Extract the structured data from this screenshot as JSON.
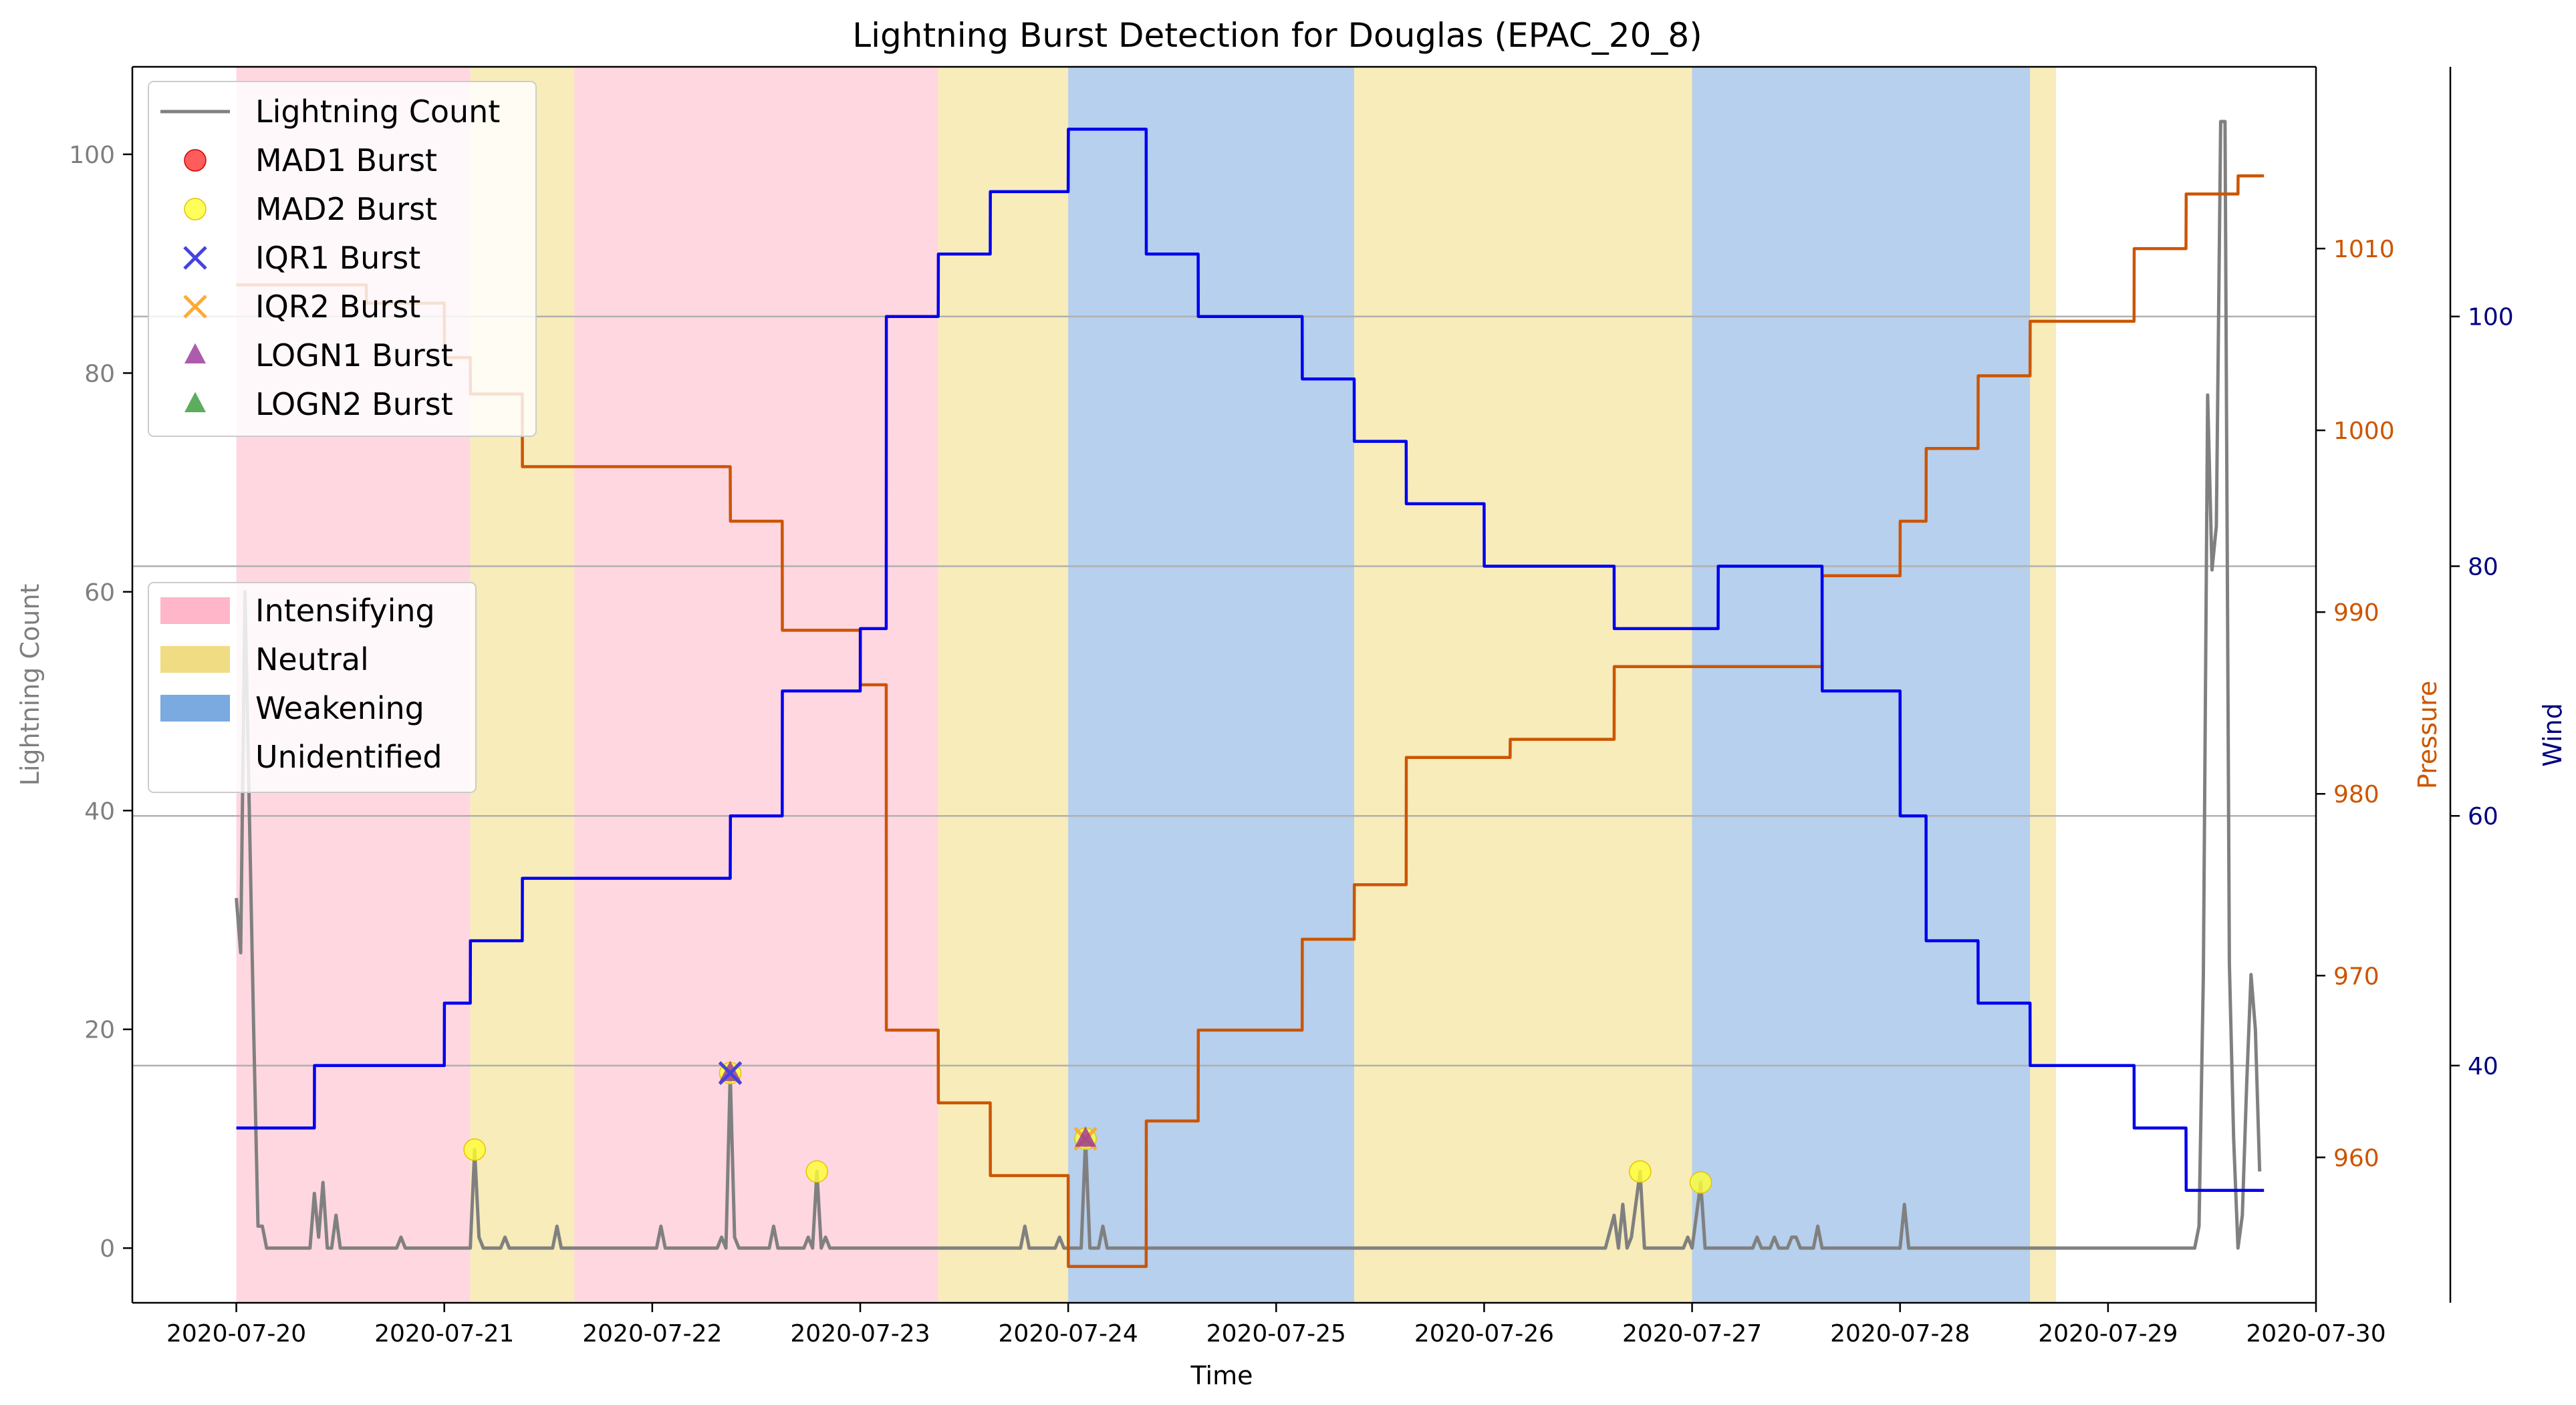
{
  "chart_data": {
    "type": "line",
    "title": "Lightning Burst Detection for Douglas (EPAC_20_8)",
    "xlabel": "Time",
    "ylabel_left": "Lightning Count",
    "ylabel_pressure": "Pressure",
    "ylabel_wind": "Wind",
    "x_range": [
      "2020-07-19T12:00",
      "2020-07-30T00:00"
    ],
    "y_left_range": [
      -5,
      108
    ],
    "y_pressure_range": [
      952,
      1020
    ],
    "y_wind_range": [
      21,
      120
    ],
    "x_ticks": [
      "2020-07-20",
      "2020-07-21",
      "2020-07-22",
      "2020-07-23",
      "2020-07-24",
      "2020-07-25",
      "2020-07-26",
      "2020-07-27",
      "2020-07-28",
      "2020-07-29",
      "2020-07-30"
    ],
    "y_left_ticks": [
      0,
      20,
      40,
      60,
      80,
      100
    ],
    "y_pressure_ticks": [
      960,
      970,
      980,
      990,
      1000,
      1010
    ],
    "y_wind_ticks": [
      40,
      60,
      80,
      100
    ],
    "grid": "horizontal at wind ticks",
    "colors": {
      "lightning": "#808080",
      "pressure": "#cc5500",
      "wind": "#0000ee",
      "pressure_axis": "#cc5500",
      "wind_axis": "#000080",
      "intensifying": "#ffb6c8",
      "neutral": "#f0dc82",
      "weakening": "#7aaadf",
      "mad1": "#ff3333",
      "mad2": "#ffff33",
      "iqr1": "#4444dd",
      "iqr2": "#ffaa33",
      "logn1": "#993399",
      "logn2": "#339933"
    },
    "stage_spans": [
      {
        "stage": "Intensifying",
        "start": "2020-07-20T00:00",
        "end": "2020-07-21T03:00"
      },
      {
        "stage": "Neutral",
        "start": "2020-07-21T03:00",
        "end": "2020-07-21T15:00"
      },
      {
        "stage": "Intensifying",
        "start": "2020-07-21T15:00",
        "end": "2020-07-23T09:00"
      },
      {
        "stage": "Neutral",
        "start": "2020-07-23T09:00",
        "end": "2020-07-24T00:00"
      },
      {
        "stage": "Weakening",
        "start": "2020-07-24T00:00",
        "end": "2020-07-25T09:00"
      },
      {
        "stage": "Neutral",
        "start": "2020-07-25T09:00",
        "end": "2020-07-27T00:00"
      },
      {
        "stage": "Weakening",
        "start": "2020-07-27T00:00",
        "end": "2020-07-28T15:00"
      },
      {
        "stage": "Neutral",
        "start": "2020-07-28T15:00",
        "end": "2020-07-28T18:00"
      }
    ],
    "wind_series": [
      [
        "2020-07-20T00:00",
        35
      ],
      [
        "2020-07-20T09:00",
        35
      ],
      [
        "2020-07-20T09:01",
        40
      ],
      [
        "2020-07-21T00:00",
        40
      ],
      [
        "2020-07-21T00:01",
        45
      ],
      [
        "2020-07-21T03:00",
        45
      ],
      [
        "2020-07-21T03:01",
        50
      ],
      [
        "2020-07-21T09:00",
        50
      ],
      [
        "2020-07-21T09:01",
        55
      ],
      [
        "2020-07-22T09:00",
        55
      ],
      [
        "2020-07-22T09:01",
        60
      ],
      [
        "2020-07-22T15:00",
        60
      ],
      [
        "2020-07-22T15:01",
        70
      ],
      [
        "2020-07-23T00:00",
        70
      ],
      [
        "2020-07-23T00:01",
        75
      ],
      [
        "2020-07-23T03:00",
        75
      ],
      [
        "2020-07-23T03:01",
        100
      ],
      [
        "2020-07-23T09:00",
        100
      ],
      [
        "2020-07-23T09:01",
        105
      ],
      [
        "2020-07-23T15:00",
        105
      ],
      [
        "2020-07-23T15:01",
        110
      ],
      [
        "2020-07-24T00:00",
        110
      ],
      [
        "2020-07-24T00:01",
        115
      ],
      [
        "2020-07-24T09:00",
        115
      ],
      [
        "2020-07-24T09:01",
        105
      ],
      [
        "2020-07-24T15:00",
        105
      ],
      [
        "2020-07-24T15:01",
        100
      ],
      [
        "2020-07-25T03:00",
        100
      ],
      [
        "2020-07-25T03:01",
        95
      ],
      [
        "2020-07-25T09:00",
        95
      ],
      [
        "2020-07-25T09:01",
        90
      ],
      [
        "2020-07-25T15:00",
        90
      ],
      [
        "2020-07-25T15:01",
        85
      ],
      [
        "2020-07-26T00:00",
        85
      ],
      [
        "2020-07-26T00:01",
        80
      ],
      [
        "2020-07-26T15:00",
        80
      ],
      [
        "2020-07-26T15:01",
        75
      ],
      [
        "2020-07-27T03:00",
        75
      ],
      [
        "2020-07-27T03:01",
        80
      ],
      [
        "2020-07-27T15:00",
        80
      ],
      [
        "2020-07-27T15:01",
        70
      ],
      [
        "2020-07-28T00:00",
        70
      ],
      [
        "2020-07-28T00:01",
        60
      ],
      [
        "2020-07-28T03:00",
        60
      ],
      [
        "2020-07-28T03:01",
        50
      ],
      [
        "2020-07-28T09:00",
        50
      ],
      [
        "2020-07-28T09:01",
        45
      ],
      [
        "2020-07-28T15:00",
        45
      ],
      [
        "2020-07-28T15:01",
        40
      ],
      [
        "2020-07-29T03:00",
        40
      ],
      [
        "2020-07-29T03:01",
        35
      ],
      [
        "2020-07-29T09:00",
        35
      ],
      [
        "2020-07-29T09:01",
        30
      ],
      [
        "2020-07-29T18:00",
        30
      ]
    ],
    "pressure_series": [
      [
        "2020-07-20T00:00",
        1008
      ],
      [
        "2020-07-20T15:00",
        1008
      ],
      [
        "2020-07-20T15:01",
        1007
      ],
      [
        "2020-07-21T00:00",
        1007
      ],
      [
        "2020-07-21T00:01",
        1004
      ],
      [
        "2020-07-21T03:00",
        1004
      ],
      [
        "2020-07-21T03:01",
        1002
      ],
      [
        "2020-07-21T09:00",
        1002
      ],
      [
        "2020-07-21T09:01",
        998
      ],
      [
        "2020-07-22T09:00",
        998
      ],
      [
        "2020-07-22T09:01",
        995
      ],
      [
        "2020-07-22T15:00",
        995
      ],
      [
        "2020-07-22T15:01",
        989
      ],
      [
        "2020-07-23T00:00",
        989
      ],
      [
        "2020-07-23T00:01",
        986
      ],
      [
        "2020-07-23T03:00",
        986
      ],
      [
        "2020-07-23T03:01",
        967
      ],
      [
        "2020-07-23T09:00",
        967
      ],
      [
        "2020-07-23T09:01",
        963
      ],
      [
        "2020-07-23T15:00",
        963
      ],
      [
        "2020-07-23T15:01",
        959
      ],
      [
        "2020-07-24T00:00",
        959
      ],
      [
        "2020-07-24T00:01",
        954
      ],
      [
        "2020-07-24T09:00",
        954
      ],
      [
        "2020-07-24T09:01",
        962
      ],
      [
        "2020-07-24T15:00",
        962
      ],
      [
        "2020-07-24T15:01",
        967
      ],
      [
        "2020-07-25T03:00",
        967
      ],
      [
        "2020-07-25T03:01",
        972
      ],
      [
        "2020-07-25T09:00",
        972
      ],
      [
        "2020-07-25T09:01",
        975
      ],
      [
        "2020-07-25T15:00",
        975
      ],
      [
        "2020-07-25T15:01",
        982
      ],
      [
        "2020-07-26T03:00",
        982
      ],
      [
        "2020-07-26T03:01",
        983
      ],
      [
        "2020-07-26T15:00",
        983
      ],
      [
        "2020-07-26T15:01",
        987
      ],
      [
        "2020-07-26T18:00",
        987
      ],
      [
        "2020-07-26T18:01",
        987
      ],
      [
        "2020-07-27T15:00",
        987
      ],
      [
        "2020-07-27T15:01",
        992
      ],
      [
        "2020-07-28T00:00",
        992
      ],
      [
        "2020-07-28T00:01",
        995
      ],
      [
        "2020-07-28T03:00",
        995
      ],
      [
        "2020-07-28T03:01",
        999
      ],
      [
        "2020-07-28T09:00",
        999
      ],
      [
        "2020-07-28T09:01",
        1003
      ],
      [
        "2020-07-28T15:00",
        1003
      ],
      [
        "2020-07-28T15:01",
        1006
      ],
      [
        "2020-07-29T03:00",
        1006
      ],
      [
        "2020-07-29T03:01",
        1010
      ],
      [
        "2020-07-29T09:00",
        1010
      ],
      [
        "2020-07-29T09:01",
        1013
      ],
      [
        "2020-07-29T15:00",
        1013
      ],
      [
        "2020-07-29T15:01",
        1014
      ],
      [
        "2020-07-29T18:00",
        1014
      ]
    ],
    "lightning_series": [
      [
        "2020-07-20T00:00",
        32
      ],
      [
        "2020-07-20T00:30",
        27
      ],
      [
        "2020-07-20T01:00",
        60
      ],
      [
        "2020-07-20T01:30",
        40
      ],
      [
        "2020-07-20T02:00",
        20
      ],
      [
        "2020-07-20T02:30",
        2
      ],
      [
        "2020-07-20T03:00",
        2
      ],
      [
        "2020-07-20T03:30",
        0
      ],
      [
        "2020-07-20T08:30",
        0
      ],
      [
        "2020-07-20T09:00",
        5
      ],
      [
        "2020-07-20T09:30",
        1
      ],
      [
        "2020-07-20T10:00",
        6
      ],
      [
        "2020-07-20T10:30",
        0
      ],
      [
        "2020-07-20T11:00",
        0
      ],
      [
        "2020-07-20T11:30",
        3
      ],
      [
        "2020-07-20T12:00",
        0
      ],
      [
        "2020-07-20T18:30",
        0
      ],
      [
        "2020-07-20T19:00",
        1
      ],
      [
        "2020-07-20T19:30",
        0
      ],
      [
        "2020-07-21T03:00",
        0
      ],
      [
        "2020-07-21T03:30",
        9
      ],
      [
        "2020-07-21T04:00",
        1
      ],
      [
        "2020-07-21T04:30",
        0
      ],
      [
        "2020-07-21T06:30",
        0
      ],
      [
        "2020-07-21T07:00",
        1
      ],
      [
        "2020-07-21T07:30",
        0
      ],
      [
        "2020-07-21T12:30",
        0
      ],
      [
        "2020-07-21T13:00",
        2
      ],
      [
        "2020-07-21T13:30",
        0
      ],
      [
        "2020-07-22T00:30",
        0
      ],
      [
        "2020-07-22T01:00",
        2
      ],
      [
        "2020-07-22T01:30",
        0
      ],
      [
        "2020-07-22T07:30",
        0
      ],
      [
        "2020-07-22T08:00",
        1
      ],
      [
        "2020-07-22T08:30",
        0
      ],
      [
        "2020-07-22T09:00",
        16
      ],
      [
        "2020-07-22T09:30",
        1
      ],
      [
        "2020-07-22T10:00",
        0
      ],
      [
        "2020-07-22T13:30",
        0
      ],
      [
        "2020-07-22T14:00",
        2
      ],
      [
        "2020-07-22T14:30",
        0
      ],
      [
        "2020-07-22T17:30",
        0
      ],
      [
        "2020-07-22T18:00",
        1
      ],
      [
        "2020-07-22T18:30",
        0
      ],
      [
        "2020-07-22T19:00",
        7
      ],
      [
        "2020-07-22T19:30",
        0
      ],
      [
        "2020-07-22T20:00",
        1
      ],
      [
        "2020-07-22T20:30",
        0
      ],
      [
        "2020-07-23T18:30",
        0
      ],
      [
        "2020-07-23T19:00",
        2
      ],
      [
        "2020-07-23T19:30",
        0
      ],
      [
        "2020-07-23T22:30",
        0
      ],
      [
        "2020-07-23T23:00",
        1
      ],
      [
        "2020-07-23T23:30",
        0
      ],
      [
        "2020-07-24T01:30",
        0
      ],
      [
        "2020-07-24T02:00",
        10
      ],
      [
        "2020-07-24T02:30",
        0
      ],
      [
        "2020-07-24T03:30",
        0
      ],
      [
        "2020-07-24T04:00",
        2
      ],
      [
        "2020-07-24T04:30",
        0
      ],
      [
        "2020-07-26T14:00",
        0
      ],
      [
        "2020-07-26T15:00",
        3
      ],
      [
        "2020-07-26T15:30",
        0
      ],
      [
        "2020-07-26T16:00",
        4
      ],
      [
        "2020-07-26T16:30",
        0
      ],
      [
        "2020-07-26T17:00",
        1
      ],
      [
        "2020-07-26T18:00",
        7
      ],
      [
        "2020-07-26T18:30",
        0
      ],
      [
        "2020-07-26T23:00",
        0
      ],
      [
        "2020-07-26T23:30",
        1
      ],
      [
        "2020-07-27T00:00",
        0
      ],
      [
        "2020-07-27T01:00",
        6
      ],
      [
        "2020-07-27T01:30",
        0
      ],
      [
        "2020-07-27T07:00",
        0
      ],
      [
        "2020-07-27T07:30",
        1
      ],
      [
        "2020-07-27T08:00",
        0
      ],
      [
        "2020-07-27T09:00",
        0
      ],
      [
        "2020-07-27T09:30",
        1
      ],
      [
        "2020-07-27T10:00",
        0
      ],
      [
        "2020-07-27T11:00",
        0
      ],
      [
        "2020-07-27T11:30",
        1
      ],
      [
        "2020-07-27T12:00",
        1
      ],
      [
        "2020-07-27T12:30",
        0
      ],
      [
        "2020-07-27T14:00",
        0
      ],
      [
        "2020-07-27T14:30",
        2
      ],
      [
        "2020-07-27T15:00",
        0
      ],
      [
        "2020-07-28T00:00",
        0
      ],
      [
        "2020-07-28T00:30",
        4
      ],
      [
        "2020-07-28T01:00",
        0
      ],
      [
        "2020-07-29T10:00",
        0
      ],
      [
        "2020-07-29T10:30",
        2
      ],
      [
        "2020-07-29T11:00",
        25
      ],
      [
        "2020-07-29T11:30",
        78
      ],
      [
        "2020-07-29T12:00",
        62
      ],
      [
        "2020-07-29T12:30",
        66
      ],
      [
        "2020-07-29T13:00",
        103
      ],
      [
        "2020-07-29T13:30",
        103
      ],
      [
        "2020-07-29T14:00",
        26
      ],
      [
        "2020-07-29T14:30",
        10
      ],
      [
        "2020-07-29T15:00",
        0
      ],
      [
        "2020-07-29T15:30",
        3
      ],
      [
        "2020-07-29T16:00",
        15
      ],
      [
        "2020-07-29T16:30",
        25
      ],
      [
        "2020-07-29T17:00",
        20
      ],
      [
        "2020-07-29T17:30",
        7
      ]
    ],
    "bursts": [
      {
        "type": "MAD2",
        "time": "2020-07-21T03:30",
        "value": 9
      },
      {
        "type": "MAD2",
        "time": "2020-07-22T09:00",
        "value": 16
      },
      {
        "type": "IQR2",
        "time": "2020-07-22T09:00",
        "value": 16
      },
      {
        "type": "LOGN1",
        "time": "2020-07-22T09:00",
        "value": 16
      },
      {
        "type": "IQR1",
        "time": "2020-07-22T09:00",
        "value": 16
      },
      {
        "type": "MAD2",
        "time": "2020-07-22T19:00",
        "value": 7
      },
      {
        "type": "MAD2",
        "time": "2020-07-24T02:00",
        "value": 10
      },
      {
        "type": "IQR2",
        "time": "2020-07-24T02:00",
        "value": 10
      },
      {
        "type": "LOGN1",
        "time": "2020-07-24T02:00",
        "value": 10
      },
      {
        "type": "MAD2",
        "time": "2020-07-26T18:00",
        "value": 7
      },
      {
        "type": "MAD2",
        "time": "2020-07-27T01:00",
        "value": 6
      }
    ],
    "legend_series": [
      "Lightning Count",
      "MAD1 Burst",
      "MAD2 Burst",
      "IQR1 Burst",
      "IQR2 Burst",
      "LOGN1 Burst",
      "LOGN2 Burst"
    ],
    "legend_series_placement": "top-left",
    "legend_stages": [
      "Intensifying",
      "Neutral",
      "Weakening",
      "Unidentified"
    ],
    "legend_stages_placement": "center-left"
  }
}
